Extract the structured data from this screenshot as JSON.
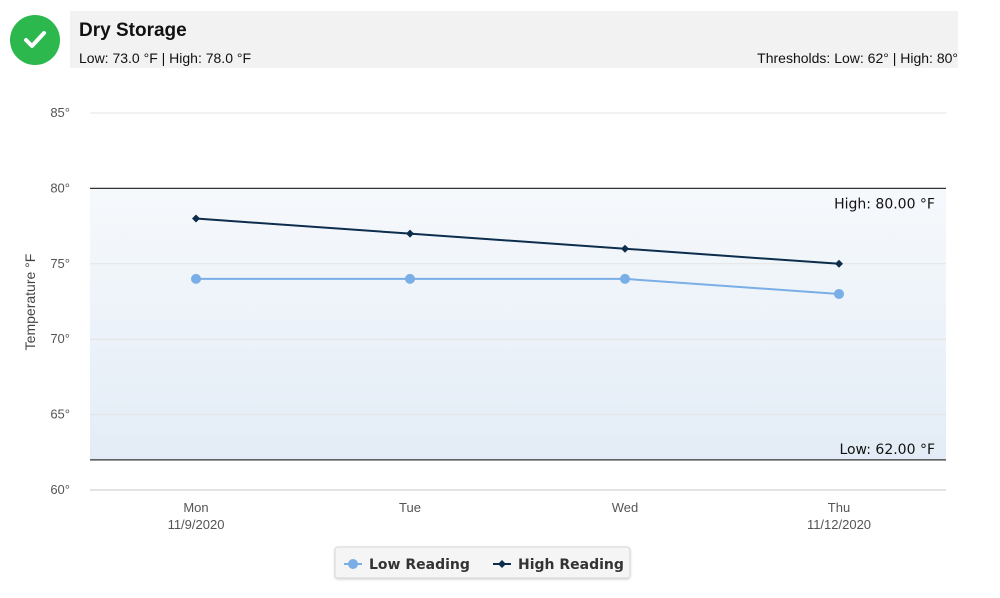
{
  "header": {
    "title": "Dry Storage",
    "summary": "Low: 73.0 °F | High: 78.0 °F",
    "thresholds": "Thresholds: Low: 62° | High: 80°",
    "status_color": "#2db84d",
    "status_icon": "check-icon"
  },
  "chart_data": {
    "type": "line",
    "categories": [
      "Mon",
      "Tue",
      "Wed",
      "Thu"
    ],
    "category_sublabels": [
      "11/9/2020",
      "",
      "",
      "11/12/2020"
    ],
    "series": [
      {
        "name": "Low Reading",
        "values": [
          74,
          74,
          74,
          73
        ],
        "color": "#7aaee6",
        "marker": "circle"
      },
      {
        "name": "High Reading",
        "values": [
          78,
          77,
          76,
          75
        ],
        "color": "#0d2d4d",
        "marker": "diamond"
      }
    ],
    "ylabel": "Temperature °F",
    "ylim": [
      60,
      85
    ],
    "yticks": [
      "60°",
      "65°",
      "70°",
      "75°",
      "80°",
      "85°"
    ],
    "grid": true,
    "thresholds": [
      {
        "label": "High: 80.00 °F",
        "value": 80
      },
      {
        "label": "Low: 62.00 °F",
        "value": 62
      }
    ],
    "legend_position": "bottom-center"
  }
}
